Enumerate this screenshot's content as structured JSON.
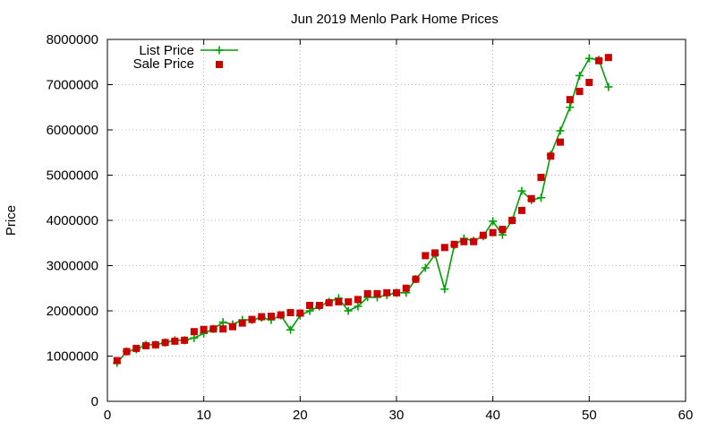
{
  "chart_data": {
    "type": "scatter",
    "title": "Jun 2019 Menlo Park Home Prices",
    "xlabel": "",
    "ylabel": "Price",
    "xlim": [
      0,
      60
    ],
    "ylim": [
      0,
      8000000
    ],
    "x_ticks": [
      "0",
      "10",
      "20",
      "30",
      "40",
      "50",
      "60"
    ],
    "y_ticks": [
      "0",
      "1000000",
      "2000000",
      "3000000",
      "4000000",
      "5000000",
      "6000000",
      "7000000",
      "8000000"
    ],
    "grid": true,
    "legend_position": "top-left",
    "series": [
      {
        "name": "List Price",
        "style": "line-with-plus-markers",
        "color": "#00a000",
        "x": [
          1,
          2,
          3,
          4,
          5,
          6,
          7,
          8,
          9,
          10,
          11,
          12,
          13,
          14,
          15,
          16,
          17,
          18,
          19,
          20,
          21,
          22,
          23,
          24,
          25,
          26,
          27,
          28,
          29,
          30,
          31,
          32,
          33,
          34,
          35,
          36,
          37,
          38,
          39,
          40,
          41,
          42,
          43,
          44,
          45,
          46,
          47,
          48,
          49,
          50,
          51,
          52
        ],
        "y": [
          850000,
          1100000,
          1150000,
          1250000,
          1250000,
          1300000,
          1350000,
          1350000,
          1400000,
          1500000,
          1600000,
          1750000,
          1700000,
          1800000,
          1800000,
          1850000,
          1800000,
          1900000,
          1580000,
          1900000,
          2000000,
          2100000,
          2200000,
          2280000,
          2000000,
          2100000,
          2300000,
          2300000,
          2350000,
          2400000,
          2400000,
          2700000,
          2950000,
          3250000,
          2480000,
          3450000,
          3600000,
          3550000,
          3650000,
          3980000,
          3680000,
          4000000,
          4650000,
          4450000,
          4500000,
          5450000,
          5980000,
          6500000,
          7200000,
          7580000,
          7550000,
          6950000
        ]
      },
      {
        "name": "Sale Price",
        "style": "square-markers",
        "color": "#cc0000",
        "x": [
          1,
          2,
          3,
          4,
          5,
          6,
          7,
          8,
          9,
          10,
          11,
          12,
          13,
          14,
          15,
          16,
          17,
          18,
          19,
          20,
          21,
          22,
          23,
          24,
          25,
          26,
          27,
          28,
          29,
          30,
          31,
          32,
          33,
          34,
          35,
          36,
          37,
          38,
          39,
          40,
          41,
          42,
          43,
          44,
          45,
          46,
          47,
          48,
          49,
          50,
          51,
          52
        ],
        "y": [
          900000,
          1100000,
          1170000,
          1230000,
          1250000,
          1300000,
          1330000,
          1350000,
          1540000,
          1590000,
          1600000,
          1600000,
          1650000,
          1730000,
          1810000,
          1870000,
          1880000,
          1910000,
          1960000,
          1950000,
          2120000,
          2120000,
          2180000,
          2200000,
          2200000,
          2250000,
          2380000,
          2380000,
          2400000,
          2400000,
          2500000,
          2700000,
          3220000,
          3280000,
          3400000,
          3470000,
          3530000,
          3530000,
          3670000,
          3730000,
          3800000,
          4000000,
          4220000,
          4480000,
          4950000,
          5420000,
          5730000,
          6670000,
          6850000,
          7050000,
          7530000,
          7600000
        ]
      }
    ]
  }
}
